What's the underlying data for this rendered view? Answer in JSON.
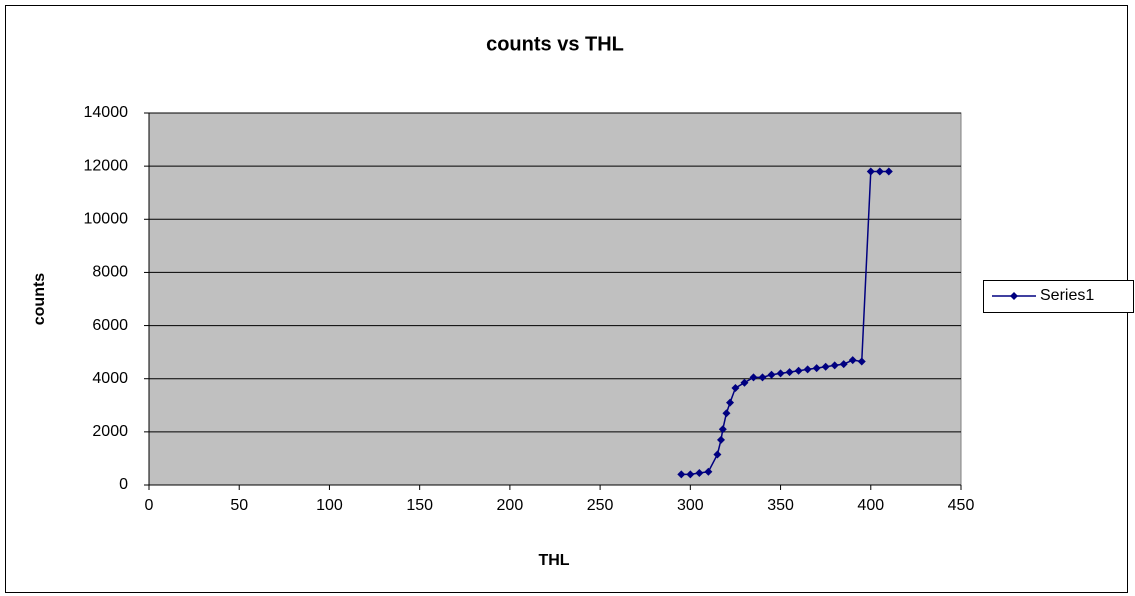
{
  "chart_data": {
    "type": "line",
    "title": "counts vs THL",
    "xlabel": "THL",
    "ylabel": "counts",
    "x": [
      295,
      300,
      305,
      310,
      315,
      317,
      318,
      320,
      322,
      325,
      330,
      335,
      340,
      345,
      350,
      355,
      360,
      365,
      370,
      375,
      380,
      385,
      390,
      395,
      400,
      405,
      410
    ],
    "series": [
      {
        "name": "Series1",
        "color": "#000080",
        "values": [
          400,
          400,
          450,
          500,
          1150,
          1700,
          2100,
          2700,
          3100,
          3650,
          3850,
          4050,
          4050,
          4150,
          4200,
          4250,
          4300,
          4350,
          4400,
          4450,
          4500,
          4550,
          4700,
          4650,
          11800,
          11800,
          11800
        ]
      }
    ],
    "xlim": [
      0,
      450
    ],
    "xticks": [
      0,
      50,
      100,
      150,
      200,
      250,
      300,
      350,
      400,
      450
    ],
    "ylim": [
      0,
      14000
    ],
    "yticks": [
      0,
      2000,
      4000,
      6000,
      8000,
      10000,
      12000,
      14000
    ],
    "grid": true,
    "legend": "right"
  }
}
